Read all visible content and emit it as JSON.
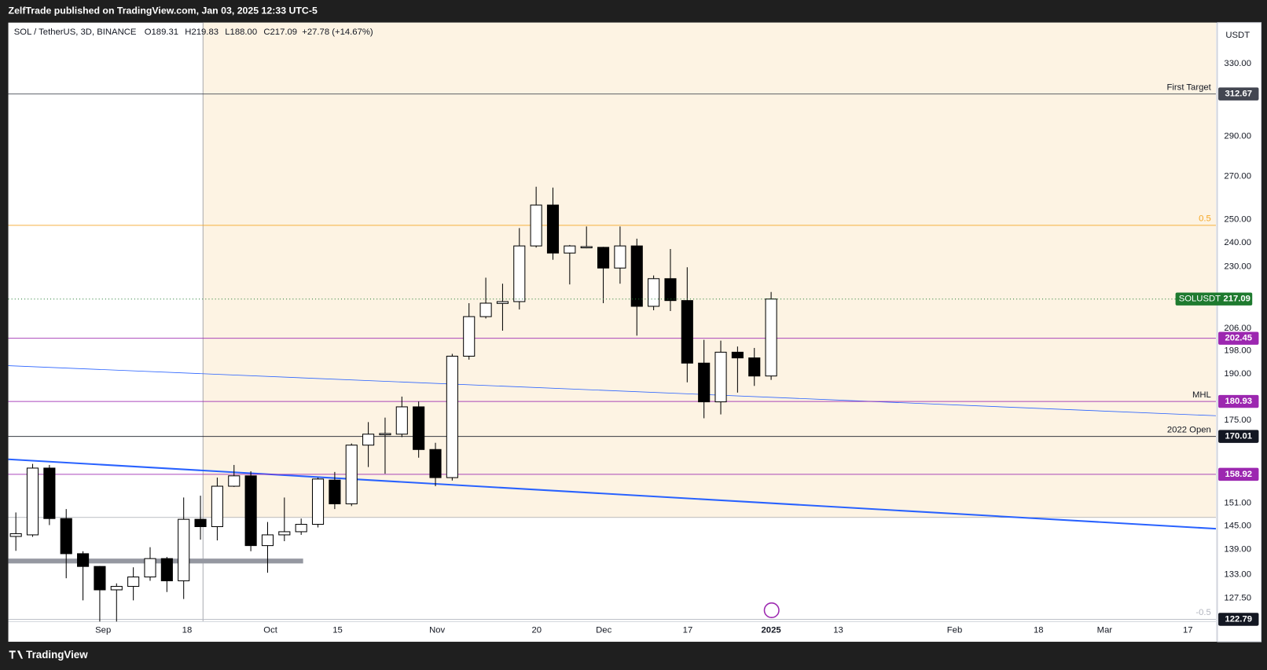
{
  "header": {
    "publisher": "ZelfTrade published on TradingView.com, Jan 03, 2025 12:33 UTC-5",
    "brand": "TradingView"
  },
  "chart_data": {
    "type": "candlestick",
    "legend": {
      "symbol": "SOL / TetherUS, 3D, BINANCE",
      "labels": [
        "O",
        "H",
        "L",
        "C"
      ],
      "value_labels": [
        "189.31",
        "219.83",
        "188.00",
        "217.09"
      ],
      "change": "+27.78 (+14.67%)"
    },
    "currency": "USDT",
    "categories": [
      null,
      null,
      null,
      null,
      null,
      null,
      null,
      null,
      null,
      null,
      null,
      null,
      null,
      null,
      null,
      null,
      null,
      null,
      null,
      null,
      null,
      null,
      null,
      null,
      null,
      null,
      null,
      null,
      null,
      null,
      null,
      null,
      null,
      null,
      null,
      null,
      null,
      null,
      null,
      null,
      null,
      null,
      null,
      null,
      null,
      null
    ],
    "open": [
      142.3,
      142.7,
      160.7,
      146.9,
      138.0,
      134.9,
      129.4,
      130.2,
      132.4,
      136.8,
      131.5,
      146.7,
      144.8,
      155.6,
      158.5,
      140.0,
      142.7,
      143.5,
      145.4,
      157.3,
      150.8,
      167.4,
      170.5,
      170.7,
      179.2,
      166.1,
      158.0,
      196.1,
      210.4,
      215.4,
      216.1,
      238.6,
      256.6,
      235.6,
      237.9,
      238.0,
      229.4,
      238.6,
      214.3,
      225.1,
      216.5,
      193.7,
      180.8,
      197.5,
      195.5,
      189.31
    ],
    "high": [
      148.5,
      161.9,
      161.6,
      149.4,
      138.6,
      135.0,
      130.9,
      134.7,
      139.6,
      137.2,
      152.5,
      153.0,
      158.0,
      161.6,
      159.8,
      146.0,
      152.5,
      146.9,
      158.0,
      159.6,
      167.9,
      174.4,
      175.8,
      182.5,
      180.9,
      168.1,
      196.9,
      215.5,
      225.5,
      223.1,
      246.3,
      265.1,
      264.7,
      239.0,
      247.0,
      238.2,
      247.0,
      241.7,
      226.4,
      237.3,
      229.7,
      201.9,
      201.6,
      199.5,
      199.0,
      219.83
    ],
    "low": [
      138.7,
      142.2,
      145.2,
      132.1,
      127.0,
      122.3,
      122.3,
      127.0,
      131.5,
      128.9,
      127.3,
      141.5,
      141.3,
      155.4,
      138.6,
      133.4,
      141.1,
      142.7,
      144.6,
      149.4,
      150.2,
      161.0,
      159.1,
      169.8,
      163.7,
      155.6,
      157.2,
      194.9,
      209.7,
      205.2,
      213.1,
      237.9,
      232.8,
      222.8,
      237.6,
      215.5,
      223.1,
      203.4,
      212.8,
      212.5,
      187.2,
      175.6,
      176.8,
      183.8,
      186.0,
      188.0
    ],
    "close": [
      143.0,
      160.7,
      146.9,
      138.0,
      134.9,
      129.4,
      130.2,
      132.4,
      136.8,
      131.5,
      146.7,
      144.8,
      155.6,
      158.5,
      140.0,
      142.7,
      143.5,
      145.4,
      157.6,
      150.8,
      167.4,
      170.7,
      170.9,
      179.2,
      166.1,
      158.0,
      196.1,
      210.4,
      215.5,
      216.1,
      238.6,
      256.6,
      235.6,
      238.6,
      238.3,
      229.4,
      238.6,
      214.3,
      225.1,
      216.5,
      193.7,
      180.8,
      197.5,
      195.5,
      189.3,
      217.09
    ],
    "up_color": "#ffffff",
    "down_color": "#000000",
    "xlim": [
      -0.45,
      71.5
    ],
    "xticks": [
      {
        "value": 5.2,
        "label": "Sep"
      },
      {
        "value": 10.2,
        "label": "18"
      },
      {
        "value": 15.17,
        "label": "Oct"
      },
      {
        "value": 19.17,
        "label": "15"
      },
      {
        "value": 25.1,
        "label": "Nov"
      },
      {
        "value": 31.03,
        "label": "20"
      },
      {
        "value": 35.03,
        "label": "Dec"
      },
      {
        "value": 40.03,
        "label": "17"
      },
      {
        "value": 45,
        "label": "2025"
      },
      {
        "value": 49,
        "label": "13"
      },
      {
        "value": 55.93,
        "label": "Feb"
      },
      {
        "value": 60.93,
        "label": "18"
      },
      {
        "value": 64.87,
        "label": "Mar"
      },
      {
        "value": 69.83,
        "label": "17"
      }
    ],
    "log_scale": true,
    "ylim": [
      122.3,
      355
    ],
    "yticks": [
      {
        "value": 330,
        "label": "330.00"
      },
      {
        "value": 290,
        "label": "290.00"
      },
      {
        "value": 270,
        "label": "270.00"
      },
      {
        "value": 250,
        "label": "250.00"
      },
      {
        "value": 240,
        "label": "240.00"
      },
      {
        "value": 230,
        "label": "230.00"
      },
      {
        "value": 206,
        "label": "206.00"
      },
      {
        "value": 198,
        "label": "198.00"
      },
      {
        "value": 190,
        "label": "190.00"
      },
      {
        "value": 175,
        "label": "175.00"
      },
      {
        "value": 151,
        "label": "151.00"
      },
      {
        "value": 145,
        "label": "145.00"
      },
      {
        "value": 139,
        "label": "139.00"
      },
      {
        "value": 133,
        "label": "133.00"
      },
      {
        "value": 127.5,
        "label": "127.50"
      }
    ],
    "grid": false,
    "last_label": "SOLUSDT",
    "last_color": "#1e7a2f",
    "levels": [
      {
        "value": 312.67,
        "label": "First Target",
        "color": "#434651"
      },
      {
        "value": 247.5,
        "label": "0.5",
        "color": "#f5a623",
        "label_color": "#f5a623",
        "tag": false
      },
      {
        "value": 202.45,
        "color": "#9c27b0"
      },
      {
        "value": 180.93,
        "label": "MHL",
        "color": "#9c27b0"
      },
      {
        "value": 170.01,
        "label": "2022 Open",
        "color": "#131722"
      },
      {
        "value": 158.92,
        "color": "#9c27b0"
      },
      {
        "value": 122.79,
        "label": "-0.5",
        "color": "#b2b5be",
        "label_color": "#b2b5be",
        "tag_color": "#131722"
      }
    ]
  }
}
